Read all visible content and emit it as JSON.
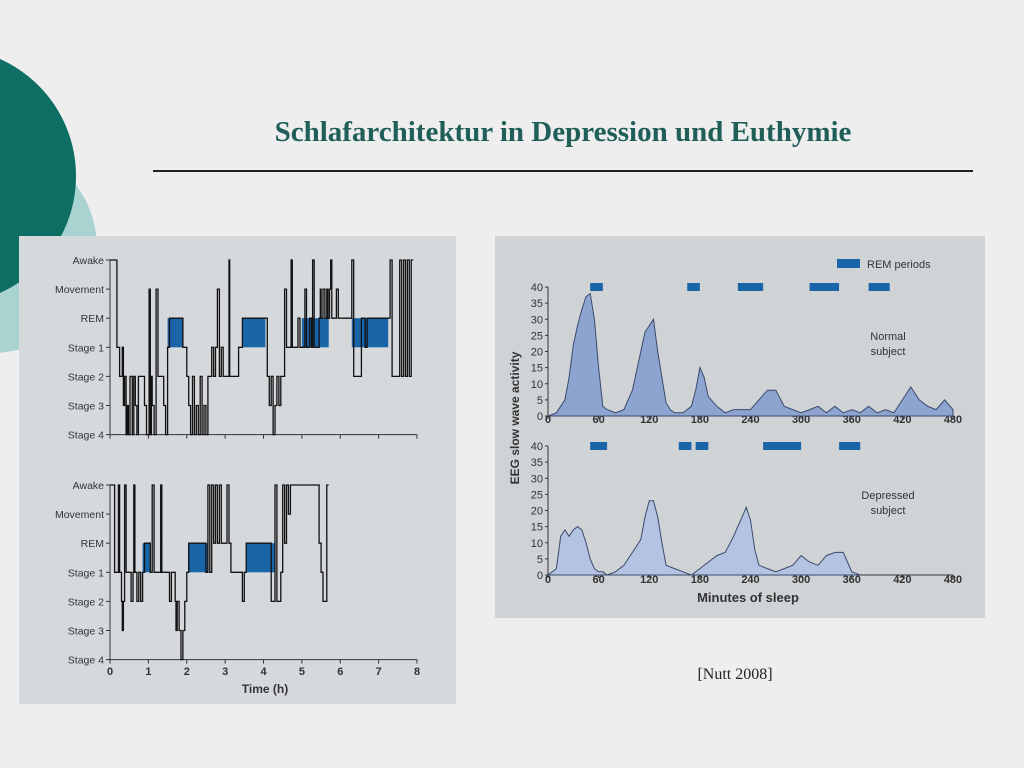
{
  "slide": {
    "title": "Schlafarchitektur in Depression und Euthymie",
    "citation": "[Nutt 2008]",
    "colors": {
      "title": "#1f5f58",
      "deco_dark": "#0e6e63",
      "deco_light": "#a9d3d0",
      "rem": "#1a64a8",
      "swa_fill": "#8ea4d0",
      "swa_fill_light": "#b3c3e1"
    }
  },
  "chart_data": [
    {
      "id": "hypnogram-normal",
      "type": "line",
      "title": "",
      "xlabel": "",
      "ylabel": "",
      "xlim": [
        0,
        8
      ],
      "y_categories": [
        "Awake",
        "Movement",
        "REM",
        "Stage 1",
        "Stage 2",
        "Stage 3",
        "Stage 4"
      ],
      "points": [
        [
          0,
          0
        ],
        [
          0.15,
          0
        ],
        [
          0.18,
          3
        ],
        [
          0.25,
          4
        ],
        [
          0.32,
          3
        ],
        [
          0.35,
          5
        ],
        [
          0.38,
          4
        ],
        [
          0.42,
          6
        ],
        [
          0.45,
          5
        ],
        [
          0.48,
          6
        ],
        [
          0.52,
          4
        ],
        [
          0.58,
          6
        ],
        [
          0.62,
          4
        ],
        [
          0.66,
          5
        ],
        [
          0.7,
          6
        ],
        [
          0.74,
          4
        ],
        [
          0.8,
          4
        ],
        [
          0.9,
          5
        ],
        [
          0.95,
          6
        ],
        [
          1.02,
          1
        ],
        [
          1.05,
          6
        ],
        [
          1.08,
          4
        ],
        [
          1.1,
          5
        ],
        [
          1.15,
          6
        ],
        [
          1.2,
          1
        ],
        [
          1.25,
          4
        ],
        [
          1.35,
          4
        ],
        [
          1.4,
          5
        ],
        [
          1.45,
          6
        ],
        [
          1.5,
          3
        ],
        [
          1.55,
          2
        ],
        [
          1.9,
          3
        ],
        [
          2.0,
          4
        ],
        [
          2.05,
          5
        ],
        [
          2.1,
          6
        ],
        [
          2.15,
          4
        ],
        [
          2.2,
          6
        ],
        [
          2.25,
          5
        ],
        [
          2.3,
          6
        ],
        [
          2.35,
          4
        ],
        [
          2.4,
          6
        ],
        [
          2.45,
          5
        ],
        [
          2.5,
          6
        ],
        [
          2.55,
          4
        ],
        [
          2.62,
          4
        ],
        [
          2.65,
          3
        ],
        [
          2.7,
          4
        ],
        [
          2.75,
          3
        ],
        [
          2.8,
          1
        ],
        [
          2.85,
          4
        ],
        [
          2.9,
          3
        ],
        [
          2.95,
          4
        ],
        [
          3.05,
          4
        ],
        [
          3.1,
          0
        ],
        [
          3.12,
          4
        ],
        [
          3.3,
          4
        ],
        [
          3.35,
          3
        ],
        [
          3.45,
          2
        ],
        [
          4.05,
          2
        ],
        [
          4.1,
          4
        ],
        [
          4.15,
          5
        ],
        [
          4.2,
          4
        ],
        [
          4.25,
          6
        ],
        [
          4.3,
          5
        ],
        [
          4.35,
          4
        ],
        [
          4.4,
          5
        ],
        [
          4.45,
          4
        ],
        [
          4.5,
          4
        ],
        [
          4.55,
          1
        ],
        [
          4.6,
          3
        ],
        [
          4.7,
          3
        ],
        [
          4.72,
          0
        ],
        [
          4.75,
          3
        ],
        [
          4.85,
          3
        ],
        [
          4.9,
          2
        ],
        [
          4.95,
          3
        ],
        [
          5.05,
          3
        ],
        [
          5.08,
          1
        ],
        [
          5.12,
          3
        ],
        [
          5.2,
          2
        ],
        [
          5.25,
          3
        ],
        [
          5.28,
          0
        ],
        [
          5.32,
          3
        ],
        [
          5.4,
          3
        ],
        [
          5.45,
          2
        ],
        [
          5.48,
          1
        ],
        [
          5.5,
          2
        ],
        [
          5.55,
          1
        ],
        [
          5.6,
          2
        ],
        [
          5.65,
          1
        ],
        [
          5.68,
          2
        ],
        [
          5.72,
          1
        ],
        [
          5.75,
          0
        ],
        [
          5.78,
          2
        ],
        [
          5.85,
          2
        ],
        [
          5.9,
          1
        ],
        [
          5.95,
          2
        ],
        [
          6.2,
          2
        ],
        [
          6.3,
          0
        ],
        [
          6.35,
          4
        ],
        [
          6.5,
          4
        ],
        [
          6.55,
          2
        ],
        [
          6.65,
          3
        ],
        [
          6.7,
          2
        ],
        [
          7.25,
          2
        ],
        [
          7.3,
          0
        ],
        [
          7.35,
          4
        ],
        [
          7.5,
          4
        ],
        [
          7.55,
          0
        ],
        [
          7.6,
          4
        ],
        [
          7.65,
          0
        ],
        [
          7.7,
          4
        ],
        [
          7.75,
          0
        ],
        [
          7.8,
          4
        ],
        [
          7.85,
          0
        ],
        [
          7.9,
          0
        ]
      ],
      "rem_blocks": [
        [
          1.5,
          1.9
        ],
        [
          3.45,
          4.05
        ],
        [
          5.0,
          5.7
        ],
        [
          6.3,
          7.25
        ]
      ]
    },
    {
      "id": "hypnogram-depressed",
      "type": "line",
      "title": "",
      "xlabel": "Time (h)",
      "ylabel": "",
      "x_ticks": [
        "0",
        "1",
        "2",
        "3",
        "4",
        "5",
        "6",
        "7",
        "8"
      ],
      "xlim": [
        0,
        8
      ],
      "y_categories": [
        "Awake",
        "Movement",
        "REM",
        "Stage 1",
        "Stage 2",
        "Stage 3",
        "Stage 4"
      ],
      "points": [
        [
          0,
          0
        ],
        [
          0.1,
          0
        ],
        [
          0.12,
          3
        ],
        [
          0.18,
          3
        ],
        [
          0.22,
          0
        ],
        [
          0.25,
          3
        ],
        [
          0.3,
          4
        ],
        [
          0.32,
          5
        ],
        [
          0.35,
          4
        ],
        [
          0.38,
          0
        ],
        [
          0.42,
          3
        ],
        [
          0.5,
          3
        ],
        [
          0.55,
          4
        ],
        [
          0.6,
          3
        ],
        [
          0.62,
          0
        ],
        [
          0.65,
          3
        ],
        [
          0.7,
          4
        ],
        [
          0.75,
          3
        ],
        [
          0.8,
          4
        ],
        [
          0.85,
          3
        ],
        [
          0.9,
          2
        ],
        [
          1.0,
          2
        ],
        [
          1.05,
          3
        ],
        [
          1.1,
          0
        ],
        [
          1.15,
          3
        ],
        [
          1.3,
          3
        ],
        [
          1.32,
          0
        ],
        [
          1.35,
          3
        ],
        [
          1.5,
          3
        ],
        [
          1.55,
          4
        ],
        [
          1.6,
          3
        ],
        [
          1.7,
          4
        ],
        [
          1.72,
          5
        ],
        [
          1.75,
          4
        ],
        [
          1.8,
          5
        ],
        [
          1.85,
          6
        ],
        [
          1.9,
          5
        ],
        [
          1.95,
          4
        ],
        [
          2.0,
          3
        ],
        [
          2.05,
          2
        ],
        [
          2.45,
          2
        ],
        [
          2.5,
          3
        ],
        [
          2.55,
          0
        ],
        [
          2.6,
          3
        ],
        [
          2.65,
          0
        ],
        [
          2.7,
          2
        ],
        [
          2.75,
          0
        ],
        [
          2.8,
          2
        ],
        [
          2.85,
          0
        ],
        [
          2.9,
          2
        ],
        [
          3.0,
          2
        ],
        [
          3.05,
          0
        ],
        [
          3.1,
          2
        ],
        [
          3.15,
          3
        ],
        [
          3.3,
          3
        ],
        [
          3.45,
          4
        ],
        [
          3.5,
          3
        ],
        [
          3.55,
          2
        ],
        [
          4.15,
          2
        ],
        [
          4.2,
          4
        ],
        [
          4.25,
          4
        ],
        [
          4.3,
          0
        ],
        [
          4.35,
          4
        ],
        [
          4.45,
          3
        ],
        [
          4.5,
          0
        ],
        [
          4.55,
          2
        ],
        [
          4.6,
          0
        ],
        [
          4.65,
          1
        ],
        [
          4.7,
          0
        ],
        [
          4.75,
          0
        ],
        [
          5.4,
          0
        ],
        [
          5.45,
          2
        ],
        [
          5.5,
          3
        ],
        [
          5.55,
          4
        ],
        [
          5.6,
          4
        ],
        [
          5.65,
          0
        ],
        [
          5.7,
          0
        ]
      ],
      "rem_blocks": [
        [
          0.85,
          1.05
        ],
        [
          2.05,
          2.55
        ],
        [
          3.55,
          4.3
        ]
      ]
    },
    {
      "id": "swa",
      "type": "area",
      "title": "",
      "xlabel": "Minutes of sleep",
      "ylabel": "EEG slow wave activity",
      "xlim": [
        0,
        480
      ],
      "ylim": [
        0,
        40
      ],
      "x_ticks": [
        "0",
        "60",
        "120",
        "180",
        "240",
        "300",
        "360",
        "420",
        "480"
      ],
      "y_ticks": [
        "0",
        "5",
        "10",
        "15",
        "20",
        "25",
        "30",
        "35",
        "40"
      ],
      "legend": {
        "label": "REM periods",
        "placement": "top-right"
      },
      "series": [
        {
          "name": "Normal subject",
          "x": [
            0,
            10,
            20,
            25,
            30,
            35,
            40,
            45,
            50,
            55,
            60,
            65,
            70,
            80,
            90,
            100,
            110,
            115,
            120,
            125,
            130,
            140,
            145,
            150,
            160,
            170,
            175,
            180,
            185,
            190,
            200,
            210,
            220,
            240,
            250,
            260,
            270,
            280,
            290,
            300,
            310,
            320,
            330,
            340,
            350,
            360,
            370,
            380,
            390,
            400,
            410,
            420,
            430,
            440,
            450,
            460,
            470,
            480
          ],
          "y": [
            0,
            1,
            5,
            12,
            22,
            28,
            33,
            37,
            38,
            30,
            15,
            3,
            2,
            1,
            2,
            8,
            20,
            26,
            28,
            30,
            20,
            4,
            2,
            1,
            1,
            3,
            8,
            15,
            12,
            6,
            3,
            1,
            2,
            2,
            5,
            8,
            8,
            3,
            2,
            1,
            2,
            3,
            1,
            3,
            1,
            2,
            1,
            3,
            1,
            2,
            1,
            5,
            9,
            5,
            3,
            2,
            5,
            2
          ]
        },
        {
          "name": "Depressed subject",
          "x": [
            0,
            10,
            15,
            20,
            25,
            30,
            35,
            40,
            45,
            50,
            55,
            60,
            65,
            70,
            80,
            90,
            100,
            105,
            110,
            115,
            120,
            125,
            130,
            135,
            140,
            150,
            160,
            170,
            180,
            190,
            200,
            210,
            220,
            225,
            230,
            235,
            240,
            245,
            250,
            260,
            270,
            280,
            290,
            300,
            310,
            320,
            330,
            340,
            350,
            360,
            370
          ],
          "y": [
            0,
            2,
            12,
            14,
            12,
            14,
            15,
            14,
            10,
            5,
            2,
            1,
            1,
            0,
            1,
            3,
            7,
            9,
            11,
            18,
            23,
            23,
            18,
            10,
            3,
            2,
            1,
            0,
            2,
            4,
            6,
            7,
            12,
            15,
            18,
            21,
            17,
            8,
            3,
            2,
            1,
            2,
            3,
            6,
            4,
            3,
            6,
            7,
            7,
            1,
            0
          ]
        }
      ],
      "rem_normal": [
        [
          50,
          65
        ],
        [
          165,
          180
        ],
        [
          225,
          255
        ],
        [
          310,
          345
        ],
        [
          380,
          405
        ]
      ],
      "rem_depressed": [
        [
          50,
          70
        ],
        [
          155,
          170
        ],
        [
          175,
          190
        ],
        [
          255,
          300
        ],
        [
          345,
          370
        ]
      ],
      "annotations": {
        "normal": [
          "Normal",
          "subject"
        ],
        "depressed": [
          "Depressed",
          "subject"
        ]
      }
    }
  ]
}
